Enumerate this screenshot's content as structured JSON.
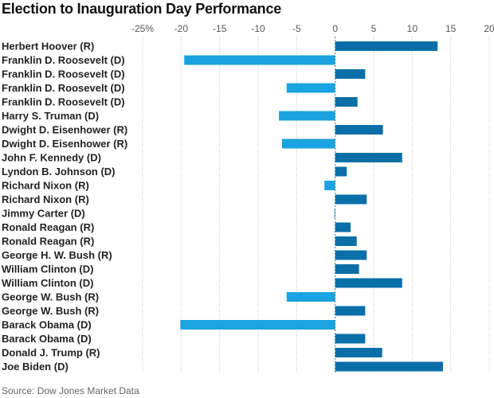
{
  "title": "Election to Inauguration Day Performance",
  "source": "Source: Dow Jones Market Data",
  "colors": {
    "positive": "#0a6fa8",
    "negative": "#1aa3e0",
    "grid": "#bbbbbb",
    "axis": "#666666"
  },
  "chart_data": {
    "type": "bar",
    "orientation": "horizontal",
    "title": "Election to Inauguration Day Performance",
    "xlabel": "",
    "ylabel": "",
    "xlim": [
      -25,
      20
    ],
    "x_ticks": [
      -25,
      -20,
      -15,
      -10,
      -5,
      0,
      5,
      10,
      15,
      20
    ],
    "x_tick_labels": [
      "-25%",
      "-20",
      "-15",
      "-10",
      "-5",
      "0",
      "5",
      "10",
      "15",
      "20"
    ],
    "grid": true,
    "categories": [
      "Herbert Hoover (R)",
      "Franklin D. Roosevelt (D)",
      "Franklin D. Roosevelt (D)",
      "Franklin D. Roosevelt (D)",
      "Franklin D. Roosevelt (D)",
      "Harry S. Truman (D)",
      "Dwight D. Eisenhower (R)",
      "Dwight D. Eisenhower (R)",
      "John F. Kennedy (D)",
      "Lyndon B. Johnson (D)",
      "Richard Nixon (R)",
      "Richard Nixon (R)",
      "Jimmy Carter (D)",
      "Ronald Reagan (R)",
      "Ronald Reagan (R)",
      "George H. W. Bush (R)",
      "William Clinton (D)",
      "William Clinton (D)",
      "George W. Bush (R)",
      "George W. Bush (R)",
      "Barack Obama (D)",
      "Barack Obama (D)",
      "Donald J. Trump (R)",
      "Joe Biden (D)"
    ],
    "values": [
      13.3,
      -19.6,
      3.9,
      -6.3,
      2.9,
      -7.3,
      6.2,
      -6.9,
      8.7,
      1.5,
      -1.4,
      4.1,
      -0.1,
      2.0,
      2.8,
      4.1,
      3.1,
      8.7,
      -6.3,
      3.9,
      -20.1,
      3.9,
      6.1,
      14.0
    ]
  }
}
